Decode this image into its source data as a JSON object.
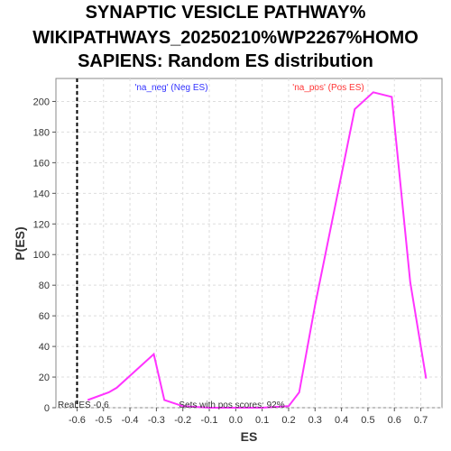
{
  "chart_data": {
    "type": "line",
    "title_lines": [
      "SYNAPTIC VESICLE PATHWAY%",
      "WIKIPATHWAYS_20250210%WP2267%HOMO",
      "SAPIENS: Random ES distribution"
    ],
    "xlabel": "ES",
    "ylabel": "P(ES)",
    "xlim": [
      -0.68,
      0.78
    ],
    "ylim": [
      0,
      215
    ],
    "x_ticks": [
      "-0.6",
      "-0.5",
      "-0.4",
      "-0.3",
      "-0.2",
      "-0.1",
      "0.0",
      "0.1",
      "0.2",
      "0.3",
      "0.4",
      "0.5",
      "0.6",
      "0.7"
    ],
    "x_tick_values": [
      -0.6,
      -0.5,
      -0.4,
      -0.3,
      -0.2,
      -0.1,
      0.0,
      0.1,
      0.2,
      0.3,
      0.4,
      0.5,
      0.6,
      0.7
    ],
    "y_ticks": [
      "0",
      "20",
      "40",
      "60",
      "80",
      "100",
      "120",
      "140",
      "160",
      "180",
      "200"
    ],
    "y_tick_values": [
      0,
      20,
      40,
      60,
      80,
      100,
      120,
      140,
      160,
      180,
      200
    ],
    "grid": true,
    "line_color": "#ff33ff",
    "series": [
      {
        "x": [
          -0.56,
          -0.48,
          -0.45,
          -0.31,
          -0.27,
          -0.2,
          -0.1,
          0.0,
          0.1,
          0.2,
          0.24,
          0.3,
          0.38,
          0.45,
          0.52,
          0.59,
          0.66,
          0.72
        ],
        "y": [
          5,
          10,
          13,
          35,
          5,
          1,
          0,
          0,
          0,
          1,
          10,
          67,
          135,
          195,
          206,
          203,
          82,
          19
        ]
      }
    ],
    "real_es": {
      "value": -0.6,
      "label": "Real ES -0.6"
    },
    "annotations": {
      "neg": {
        "text": "'na_neg' (Neg ES)",
        "color": "#3333ff"
      },
      "pos": {
        "text": "'na_pos' (Pos ES)",
        "color": "#ff3333"
      },
      "pos_scores": "Sets with pos scores: 92%"
    }
  }
}
